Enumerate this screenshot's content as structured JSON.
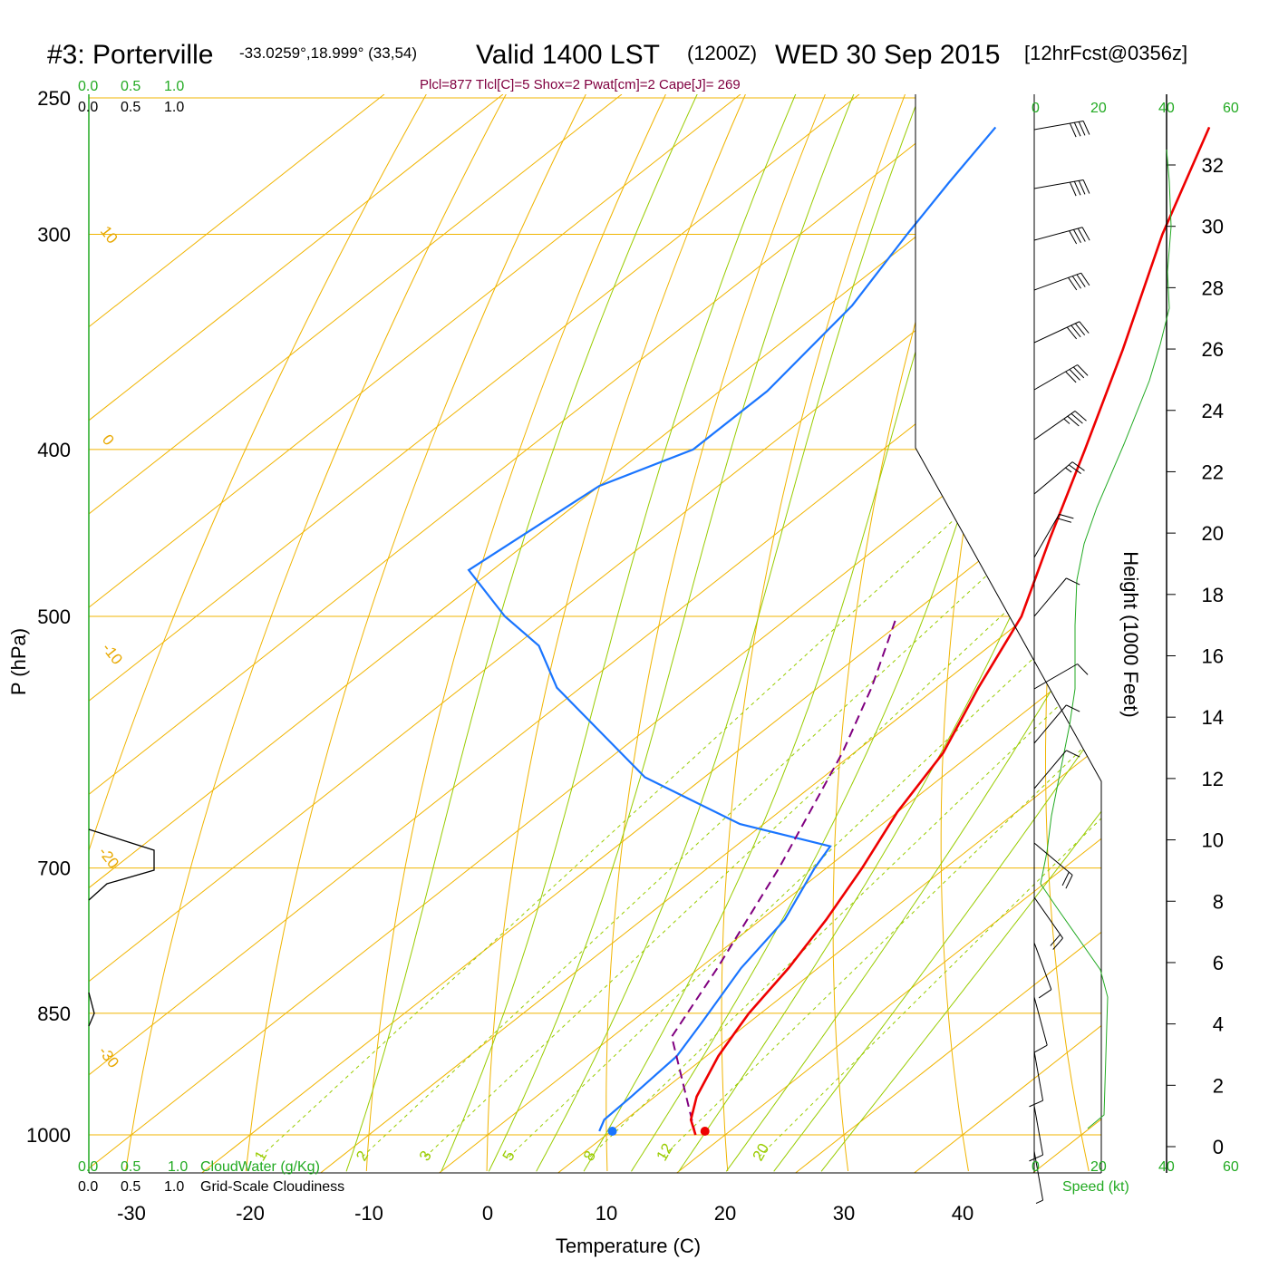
{
  "header": {
    "station": "#3: Porterville",
    "coords": "-33.0259°,18.999° (33,54)",
    "valid": "Valid 1400 LST",
    "zulu": "(1200Z)",
    "date": "WED 30 Sep 2015",
    "forecast": "[12hrFcst@0356z]"
  },
  "indices_line": "Plcl=877 Tlcl[C]=5 Shox=2 Pwat[cm]=2 Cape[J]= 269",
  "cloud_scale": {
    "green_ticks": [
      "0.0",
      "0.5",
      "1.0"
    ],
    "black_ticks": [
      "0.0",
      "0.5",
      "1.0"
    ],
    "cloudwater_label": "CloudWater (g/Kg)",
    "cloudiness_label": "Grid-Scale Cloudiness"
  },
  "speed_axis": {
    "ticks": [
      "0",
      "20",
      "40",
      "60"
    ],
    "label": "Speed (kt)"
  },
  "height_axis": {
    "title": "Height (1000 Feet)",
    "ticks": [
      "0",
      "2",
      "4",
      "6",
      "8",
      "10",
      "12",
      "14",
      "16",
      "18",
      "20",
      "22",
      "24",
      "26",
      "28",
      "30",
      "32"
    ]
  },
  "colors": {
    "isotherm": "#f0b400",
    "adiabat": "#99cc00",
    "temperature": "#ee0000",
    "dewpoint": "#1a75ff",
    "parcel": "#800080",
    "wind_profile": "#22aa22"
  },
  "chart_data": {
    "type": "skew-t",
    "xlabel": "Temperature (C)",
    "ylabel": "P (hPa)",
    "x_ticks": [
      -30,
      -20,
      -10,
      0,
      10,
      20,
      30,
      40
    ],
    "x_tick_labels": [
      "-30",
      "-20",
      "-10",
      "0",
      "10",
      "20",
      "30",
      "40"
    ],
    "p_ticks": [
      250,
      300,
      400,
      500,
      700,
      850,
      1000
    ],
    "p_tick_labels": [
      "250",
      "300",
      "400",
      "500",
      "700",
      "850",
      "1000"
    ],
    "isotherm_labels": [
      {
        "t": 10,
        "text": "10"
      },
      {
        "t": 0,
        "text": "0"
      },
      {
        "t": -10,
        "text": "-10"
      },
      {
        "t": -20,
        "text": "-20"
      },
      {
        "t": -30,
        "text": "-30"
      }
    ],
    "adiabat_labels": [
      "0",
      "10",
      "20",
      "30"
    ],
    "mixing_ratio_labels": [
      "1",
      "2",
      "3",
      "5",
      "8",
      "12",
      "20"
    ],
    "temperature_profile": [
      {
        "p": 1000,
        "t": 17.5
      },
      {
        "p": 980,
        "t": 15.5
      },
      {
        "p": 950,
        "t": 13.5
      },
      {
        "p": 900,
        "t": 11.0
      },
      {
        "p": 870,
        "t": 9.8
      },
      {
        "p": 850,
        "t": 9.0
      },
      {
        "p": 800,
        "t": 7.5
      },
      {
        "p": 750,
        "t": 5.5
      },
      {
        "p": 700,
        "t": 3.0
      },
      {
        "p": 650,
        "t": 0.0
      },
      {
        "p": 600,
        "t": -2.5
      },
      {
        "p": 550,
        "t": -6.5
      },
      {
        "p": 500,
        "t": -10.5
      },
      {
        "p": 450,
        "t": -16.5
      },
      {
        "p": 400,
        "t": -23.0
      },
      {
        "p": 350,
        "t": -30.5
      },
      {
        "p": 300,
        "t": -39.5
      },
      {
        "p": 260,
        "t": -47.0
      }
    ],
    "dewpoint_profile": [
      {
        "p": 995,
        "t": 9.0
      },
      {
        "p": 980,
        "t": 8.2
      },
      {
        "p": 950,
        "t": 8.0
      },
      {
        "p": 900,
        "t": 7.5
      },
      {
        "p": 860,
        "t": 6.0
      },
      {
        "p": 800,
        "t": 3.5
      },
      {
        "p": 750,
        "t": 2.0
      },
      {
        "p": 700,
        "t": -1.0
      },
      {
        "p": 680,
        "t": -2.0
      },
      {
        "p": 660,
        "t": -12.0
      },
      {
        "p": 620,
        "t": -25.0
      },
      {
        "p": 550,
        "t": -42.0
      },
      {
        "p": 520,
        "t": -48.0
      },
      {
        "p": 500,
        "t": -54.0
      },
      {
        "p": 470,
        "t": -62.0
      },
      {
        "p": 420,
        "t": -60.0
      },
      {
        "p": 400,
        "t": -56.0
      },
      {
        "p": 370,
        "t": -56.0
      },
      {
        "p": 330,
        "t": -58.0
      },
      {
        "p": 300,
        "t": -61.0
      },
      {
        "p": 280,
        "t": -63.0
      },
      {
        "p": 260,
        "t": -65.0
      }
    ],
    "parcel_profile": [
      {
        "p": 1000,
        "t": 17.5
      },
      {
        "p": 877,
        "t": 5.0
      },
      {
        "p": 800,
        "t": 1.5
      },
      {
        "p": 700,
        "t": -4.0
      },
      {
        "p": 600,
        "t": -11.0
      },
      {
        "p": 550,
        "t": -15.5
      },
      {
        "p": 500,
        "t": -21.0
      }
    ],
    "surface_temperature": 18.3,
    "surface_dewpoint": 10.5
  }
}
